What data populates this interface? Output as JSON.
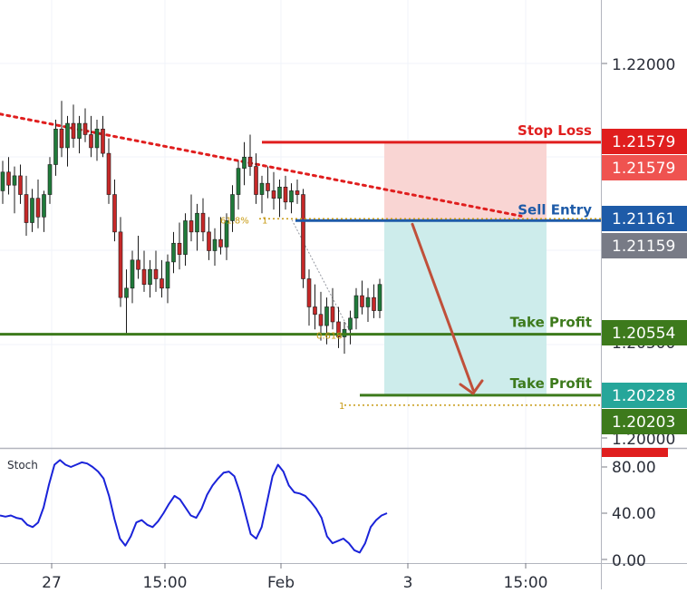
{
  "chart_data": {
    "type": "candlestick",
    "title": "",
    "price_axis": {
      "ticks": [
        "1.22000",
        "1.20500",
        "1.20000"
      ],
      "range": [
        1.1983,
        1.2275
      ]
    },
    "time_axis": {
      "ticks": [
        "27",
        "15:00",
        "Feb",
        "3",
        "15:00"
      ]
    },
    "levels": {
      "stop_loss": {
        "label": "Stop Loss",
        "price": 1.21579,
        "tag": "1.21579",
        "color": "#e01e1e"
      },
      "stop_loss_alt": {
        "tag": "1.21579",
        "color": "#ef5350"
      },
      "sell_entry": {
        "label": "Sell Entry",
        "price": 1.21161,
        "tag": "1.21161",
        "color": "#1e5ba8"
      },
      "current": {
        "tag": "1.21159",
        "color": "#787b86"
      },
      "take_profit_1": {
        "label": "Take Profit",
        "price": 1.20554,
        "tag": "1.20554",
        "color": "#3d7a1c"
      },
      "take_profit_2": {
        "label": "Take Profit",
        "price": 1.20228,
        "tag": "1.20228",
        "color": "#26a69a"
      },
      "fib_one": {
        "tag": "1.20203",
        "color": "#3d7a1c"
      }
    },
    "fib_labels": {
      "upper": "61.8%",
      "upper_right": "1",
      "lower": "0.618",
      "ext": "1"
    },
    "trendline": {
      "color": "#e01e1e",
      "style": "dotted"
    },
    "arrow_color": "#c0503a",
    "candles": [
      [
        1.2132,
        1.2148,
        1.2125,
        1.2142
      ],
      [
        1.2142,
        1.215,
        1.213,
        1.2135
      ],
      [
        1.2135,
        1.2145,
        1.212,
        1.214
      ],
      [
        1.214,
        1.2146,
        1.2125,
        1.213
      ],
      [
        1.213,
        1.214,
        1.2108,
        1.2115
      ],
      [
        1.2115,
        1.2133,
        1.211,
        1.2128
      ],
      [
        1.2128,
        1.2138,
        1.2112,
        1.2118
      ],
      [
        1.2118,
        1.2132,
        1.211,
        1.213
      ],
      [
        1.213,
        1.215,
        1.2125,
        1.2146
      ],
      [
        1.2146,
        1.217,
        1.214,
        1.2165
      ],
      [
        1.2165,
        1.218,
        1.215,
        1.2155
      ],
      [
        1.2155,
        1.2172,
        1.2145,
        1.2168
      ],
      [
        1.2168,
        1.2178,
        1.2155,
        1.216
      ],
      [
        1.216,
        1.2172,
        1.2152,
        1.2168
      ],
      [
        1.2168,
        1.2176,
        1.2158,
        1.2162
      ],
      [
        1.2162,
        1.2172,
        1.215,
        1.2155
      ],
      [
        1.2155,
        1.217,
        1.2148,
        1.2165
      ],
      [
        1.2165,
        1.2172,
        1.215,
        1.2152
      ],
      [
        1.2152,
        1.216,
        1.2125,
        1.213
      ],
      [
        1.213,
        1.2138,
        1.2105,
        1.211
      ],
      [
        1.211,
        1.2118,
        1.207,
        1.2075
      ],
      [
        1.2075,
        1.209,
        1.2055,
        1.208
      ],
      [
        1.208,
        1.21,
        1.2072,
        1.2095
      ],
      [
        1.2095,
        1.2108,
        1.2085,
        1.209
      ],
      [
        1.209,
        1.21,
        1.2078,
        1.2082
      ],
      [
        1.2082,
        1.2095,
        1.2075,
        1.209
      ],
      [
        1.209,
        1.21,
        1.2078,
        1.2085
      ],
      [
        1.2085,
        1.2095,
        1.2075,
        1.208
      ],
      [
        1.208,
        1.2098,
        1.2072,
        1.2094
      ],
      [
        1.2094,
        1.211,
        1.2088,
        1.2104
      ],
      [
        1.2104,
        1.2115,
        1.209,
        1.2098
      ],
      [
        1.2098,
        1.212,
        1.2092,
        1.2116
      ],
      [
        1.2116,
        1.213,
        1.2105,
        1.211
      ],
      [
        1.211,
        1.2125,
        1.21,
        1.212
      ],
      [
        1.212,
        1.2128,
        1.2105,
        1.211
      ],
      [
        1.211,
        1.2118,
        1.2095,
        1.21
      ],
      [
        1.21,
        1.2112,
        1.2092,
        1.2106
      ],
      [
        1.2106,
        1.2118,
        1.2098,
        1.2102
      ],
      [
        1.2102,
        1.212,
        1.2095,
        1.2116
      ],
      [
        1.2116,
        1.2135,
        1.211,
        1.213
      ],
      [
        1.213,
        1.2148,
        1.2122,
        1.2144
      ],
      [
        1.2144,
        1.2158,
        1.2135,
        1.215
      ],
      [
        1.215,
        1.2162,
        1.214,
        1.2145
      ],
      [
        1.2145,
        1.2152,
        1.2125,
        1.213
      ],
      [
        1.213,
        1.214,
        1.212,
        1.2136
      ],
      [
        1.2136,
        1.2145,
        1.2128,
        1.2132
      ],
      [
        1.2132,
        1.2142,
        1.2122,
        1.2128
      ],
      [
        1.2128,
        1.2138,
        1.2118,
        1.2134
      ],
      [
        1.2134,
        1.214,
        1.2122,
        1.2126
      ],
      [
        1.2126,
        1.2136,
        1.212,
        1.2132
      ],
      [
        1.2132,
        1.2138,
        1.2125,
        1.213
      ],
      [
        1.213,
        1.2133,
        1.208,
        1.2085
      ],
      [
        1.2085,
        1.209,
        1.206,
        1.207
      ],
      [
        1.207,
        1.2082,
        1.2058,
        1.2066
      ],
      [
        1.2066,
        1.2078,
        1.2052,
        1.206
      ],
      [
        1.206,
        1.2075,
        1.205,
        1.207
      ],
      [
        1.207,
        1.208,
        1.2058,
        1.2062
      ],
      [
        1.2062,
        1.207,
        1.2048,
        1.2054
      ],
      [
        1.2054,
        1.2062,
        1.2045,
        1.2058
      ],
      [
        1.2058,
        1.2068,
        1.205,
        1.2064
      ],
      [
        1.2064,
        1.208,
        1.2058,
        1.2076
      ],
      [
        1.2076,
        1.2084,
        1.2066,
        1.207
      ],
      [
        1.207,
        1.208,
        1.2062,
        1.2075
      ],
      [
        1.2075,
        1.2082,
        1.2064,
        1.2068
      ],
      [
        1.2068,
        1.2085,
        1.2064,
        1.2082
      ]
    ],
    "stoch": {
      "label": "Stoch",
      "ticks": [
        "80.00",
        "40.00",
        "0.00"
      ],
      "values": [
        38,
        37,
        38,
        36,
        35,
        30,
        28,
        32,
        45,
        65,
        82,
        86,
        82,
        80,
        82,
        84,
        83,
        80,
        76,
        70,
        55,
        35,
        18,
        12,
        20,
        32,
        34,
        30,
        28,
        33,
        40,
        48,
        55,
        52,
        45,
        38,
        36,
        44,
        56,
        64,
        70,
        75,
        76,
        72,
        58,
        40,
        22,
        18,
        28,
        50,
        72,
        82,
        76,
        64,
        58,
        57,
        55,
        50,
        44,
        36,
        20,
        14,
        16,
        18,
        14,
        8,
        6,
        14,
        28,
        34,
        38,
        40
      ],
      "color": "#1a23d9"
    },
    "side_marker_color": "#e01e1e"
  }
}
